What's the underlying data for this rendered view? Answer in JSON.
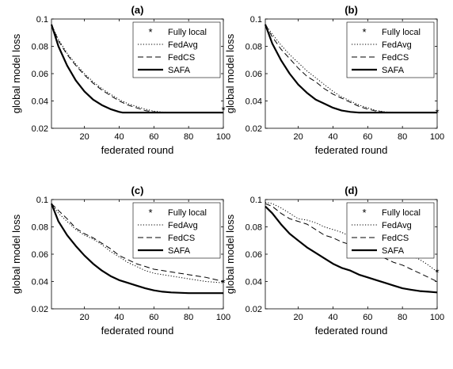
{
  "chart_data": [
    {
      "type": "line",
      "title": "(a)",
      "xlabel": "federated round",
      "ylabel": "global model loss",
      "xlim": [
        1,
        100
      ],
      "ylim": [
        0.02,
        0.1
      ],
      "xticks": [
        20,
        40,
        60,
        80,
        100
      ],
      "yticks": [
        0.02,
        0.04,
        0.06,
        0.08,
        0.1
      ],
      "legend_position": "top-right",
      "series": [
        {
          "name": "Fully local",
          "style": "star",
          "x": [
            100
          ],
          "y": [
            0.0335
          ]
        },
        {
          "name": "FedAvg",
          "style": "dotted",
          "x": [
            1,
            5,
            10,
            15,
            20,
            25,
            30,
            35,
            40,
            45,
            50,
            55,
            60,
            65,
            70,
            80,
            90,
            100
          ],
          "y": [
            0.096,
            0.085,
            0.075,
            0.067,
            0.06,
            0.054,
            0.049,
            0.045,
            0.041,
            0.038,
            0.036,
            0.034,
            0.0325,
            0.0318,
            0.0315,
            0.0315,
            0.0315,
            0.0315
          ]
        },
        {
          "name": "FedCS",
          "style": "dashed",
          "x": [
            1,
            5,
            10,
            15,
            20,
            25,
            30,
            35,
            40,
            45,
            50,
            55,
            60,
            65,
            70,
            80,
            90,
            100
          ],
          "y": [
            0.096,
            0.084,
            0.074,
            0.066,
            0.059,
            0.053,
            0.048,
            0.044,
            0.04,
            0.037,
            0.035,
            0.033,
            0.032,
            0.0316,
            0.0315,
            0.0315,
            0.0315,
            0.0315
          ]
        },
        {
          "name": "SAFA",
          "style": "solid",
          "x": [
            1,
            5,
            10,
            15,
            20,
            25,
            30,
            35,
            40,
            42,
            45,
            50,
            60,
            70,
            80,
            90,
            100
          ],
          "y": [
            0.096,
            0.08,
            0.066,
            0.055,
            0.047,
            0.041,
            0.037,
            0.034,
            0.032,
            0.0315,
            0.0315,
            0.0315,
            0.0315,
            0.0315,
            0.0315,
            0.0315,
            0.0315
          ]
        }
      ]
    },
    {
      "type": "line",
      "title": "(b)",
      "xlabel": "federated round",
      "ylabel": "global model loss",
      "xlim": [
        1,
        100
      ],
      "ylim": [
        0.02,
        0.1
      ],
      "xticks": [
        20,
        40,
        60,
        80,
        100
      ],
      "yticks": [
        0.02,
        0.04,
        0.06,
        0.08,
        0.1
      ],
      "legend_position": "top-right",
      "series": [
        {
          "name": "Fully local",
          "style": "star",
          "x": [
            100
          ],
          "y": [
            0.0318
          ]
        },
        {
          "name": "FedAvg",
          "style": "dotted",
          "x": [
            1,
            5,
            10,
            15,
            20,
            25,
            30,
            35,
            40,
            45,
            50,
            55,
            60,
            65,
            70,
            75,
            80,
            90,
            100
          ],
          "y": [
            0.096,
            0.089,
            0.081,
            0.074,
            0.068,
            0.062,
            0.057,
            0.052,
            0.047,
            0.043,
            0.04,
            0.037,
            0.035,
            0.033,
            0.032,
            0.0316,
            0.0315,
            0.0315,
            0.0315
          ]
        },
        {
          "name": "FedCS",
          "style": "dashed",
          "x": [
            1,
            5,
            10,
            15,
            20,
            25,
            30,
            35,
            40,
            45,
            50,
            55,
            60,
            65,
            70,
            75,
            80,
            90,
            100
          ],
          "y": [
            0.096,
            0.087,
            0.078,
            0.071,
            0.064,
            0.058,
            0.054,
            0.049,
            0.045,
            0.042,
            0.039,
            0.036,
            0.034,
            0.0325,
            0.0318,
            0.0315,
            0.0315,
            0.0315,
            0.0315
          ]
        },
        {
          "name": "SAFA",
          "style": "solid",
          "x": [
            1,
            5,
            10,
            15,
            20,
            25,
            30,
            35,
            40,
            45,
            50,
            55,
            60,
            70,
            80,
            90,
            100
          ],
          "y": [
            0.096,
            0.082,
            0.07,
            0.06,
            0.052,
            0.046,
            0.041,
            0.038,
            0.035,
            0.033,
            0.032,
            0.0315,
            0.0315,
            0.0315,
            0.0315,
            0.0315,
            0.0315
          ]
        }
      ]
    },
    {
      "type": "line",
      "title": "(c)",
      "xlabel": "federated round",
      "ylabel": "global model loss",
      "xlim": [
        1,
        100
      ],
      "ylim": [
        0.02,
        0.1
      ],
      "xticks": [
        20,
        40,
        60,
        80,
        100
      ],
      "yticks": [
        0.02,
        0.04,
        0.06,
        0.08,
        0.1
      ],
      "legend_position": "top-right",
      "series": [
        {
          "name": "Fully local",
          "style": "star",
          "x": [
            100
          ],
          "y": [
            0.0395
          ]
        },
        {
          "name": "FedAvg",
          "style": "dotted",
          "x": [
            1,
            5,
            10,
            15,
            20,
            25,
            30,
            35,
            40,
            45,
            50,
            55,
            60,
            70,
            80,
            90,
            100
          ],
          "y": [
            0.097,
            0.09,
            0.084,
            0.078,
            0.074,
            0.071,
            0.067,
            0.062,
            0.058,
            0.054,
            0.051,
            0.048,
            0.046,
            0.044,
            0.042,
            0.04,
            0.039
          ]
        },
        {
          "name": "FedCS",
          "style": "dashed",
          "x": [
            1,
            5,
            10,
            15,
            20,
            25,
            30,
            35,
            40,
            45,
            50,
            55,
            60,
            70,
            80,
            90,
            100
          ],
          "y": [
            0.097,
            0.092,
            0.086,
            0.079,
            0.075,
            0.072,
            0.068,
            0.064,
            0.059,
            0.056,
            0.053,
            0.051,
            0.049,
            0.047,
            0.045,
            0.043,
            0.04
          ]
        },
        {
          "name": "SAFA",
          "style": "solid",
          "x": [
            1,
            5,
            10,
            15,
            20,
            25,
            30,
            35,
            40,
            45,
            50,
            55,
            60,
            65,
            70,
            80,
            90,
            100
          ],
          "y": [
            0.097,
            0.084,
            0.074,
            0.066,
            0.059,
            0.053,
            0.048,
            0.044,
            0.041,
            0.039,
            0.037,
            0.035,
            0.0335,
            0.0325,
            0.032,
            0.0315,
            0.0315,
            0.0315
          ]
        }
      ]
    },
    {
      "type": "line",
      "title": "(d)",
      "xlabel": "federated round",
      "ylabel": "global model loss",
      "xlim": [
        1,
        100
      ],
      "ylim": [
        0.02,
        0.1
      ],
      "xticks": [
        20,
        40,
        60,
        80,
        100
      ],
      "yticks": [
        0.02,
        0.04,
        0.06,
        0.08,
        0.1
      ],
      "legend_position": "top-right",
      "series": [
        {
          "name": "Fully local",
          "style": "star",
          "x": [
            100
          ],
          "y": [
            0.047
          ]
        },
        {
          "name": "FedAvg",
          "style": "dotted",
          "x": [
            1,
            5,
            10,
            15,
            20,
            25,
            30,
            35,
            40,
            45,
            50,
            55,
            60,
            65,
            70,
            75,
            80,
            85,
            90,
            95,
            100
          ],
          "y": [
            0.098,
            0.097,
            0.094,
            0.09,
            0.086,
            0.085,
            0.083,
            0.08,
            0.078,
            0.076,
            0.073,
            0.072,
            0.07,
            0.068,
            0.066,
            0.064,
            0.062,
            0.059,
            0.056,
            0.052,
            0.047
          ]
        },
        {
          "name": "FedCS",
          "style": "dashed",
          "x": [
            1,
            5,
            10,
            15,
            20,
            25,
            30,
            35,
            40,
            45,
            50,
            55,
            60,
            65,
            70,
            75,
            80,
            85,
            90,
            95,
            100
          ],
          "y": [
            0.097,
            0.095,
            0.09,
            0.086,
            0.084,
            0.082,
            0.078,
            0.074,
            0.072,
            0.069,
            0.067,
            0.065,
            0.062,
            0.06,
            0.057,
            0.054,
            0.052,
            0.049,
            0.046,
            0.043,
            0.04
          ]
        },
        {
          "name": "SAFA",
          "style": "solid",
          "x": [
            1,
            5,
            10,
            15,
            20,
            25,
            30,
            35,
            40,
            45,
            50,
            55,
            60,
            65,
            70,
            75,
            80,
            85,
            90,
            95,
            100
          ],
          "y": [
            0.095,
            0.09,
            0.082,
            0.075,
            0.07,
            0.065,
            0.061,
            0.057,
            0.053,
            0.05,
            0.048,
            0.045,
            0.043,
            0.041,
            0.039,
            0.037,
            0.035,
            0.034,
            0.033,
            0.0325,
            0.032
          ]
        }
      ]
    }
  ]
}
